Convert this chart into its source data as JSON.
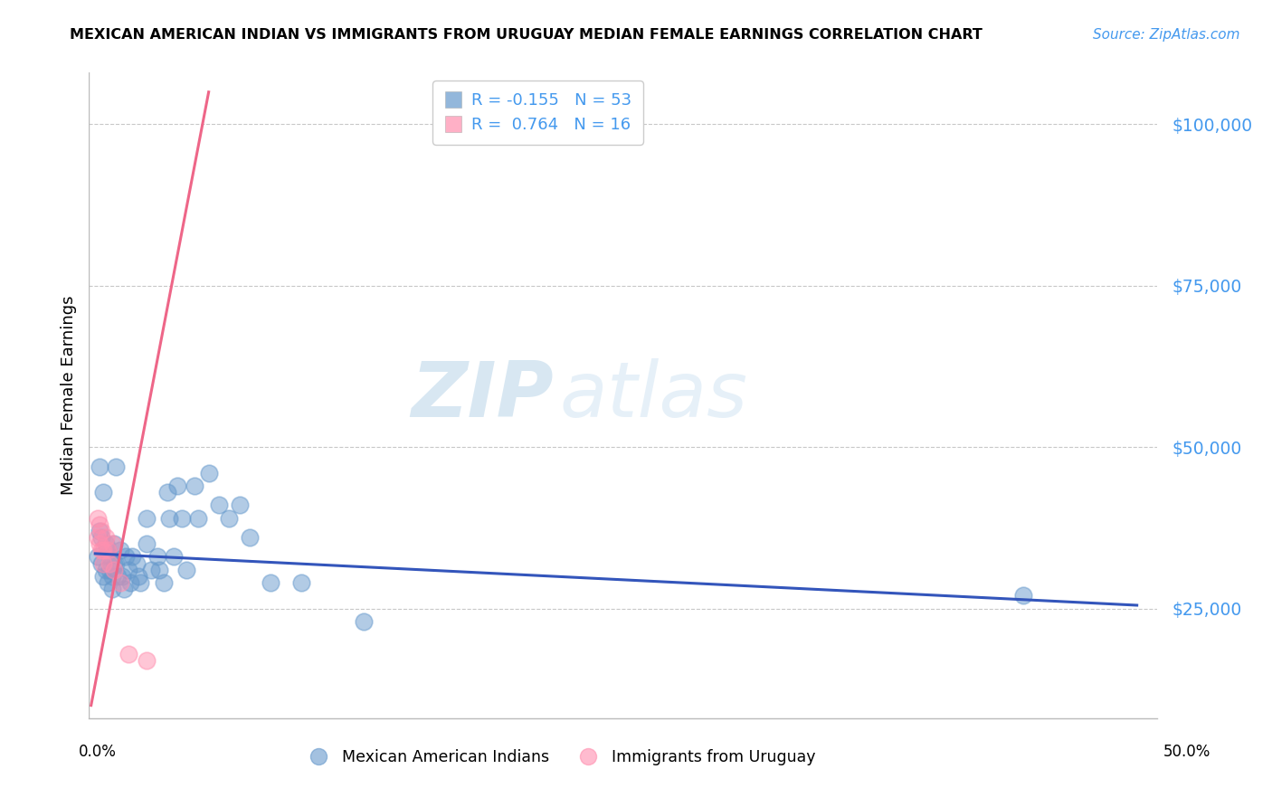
{
  "title": "MEXICAN AMERICAN INDIAN VS IMMIGRANTS FROM URUGUAY MEDIAN FEMALE EARNINGS CORRELATION CHART",
  "source": "Source: ZipAtlas.com",
  "ylabel": "Median Female Earnings",
  "ylim": [
    8000,
    108000
  ],
  "xlim": [
    -0.003,
    0.515
  ],
  "yticks": [
    25000,
    50000,
    75000,
    100000
  ],
  "ytick_labels": [
    "$25,000",
    "$50,000",
    "$75,000",
    "$100,000"
  ],
  "legend1_R": "-0.155",
  "legend1_N": "53",
  "legend2_R": "0.764",
  "legend2_N": "16",
  "legend1_label": "Mexican American Indians",
  "legend2_label": "Immigrants from Uruguay",
  "blue_color": "#6699CC",
  "pink_color": "#FF8FAF",
  "blue_line_color": "#3355BB",
  "pink_line_color": "#EE6688",
  "tick_color": "#4499EE",
  "source_color": "#4499EE",
  "watermark_color": "#C5DFF0",
  "blue_trend_x": [
    0.0,
    0.505
  ],
  "blue_trend_y": [
    33500,
    25500
  ],
  "pink_trend_x": [
    -0.002,
    0.055
  ],
  "pink_trend_y": [
    10000,
    105000
  ],
  "blue_x": [
    0.001,
    0.002,
    0.002,
    0.003,
    0.003,
    0.004,
    0.004,
    0.005,
    0.005,
    0.006,
    0.006,
    0.007,
    0.007,
    0.008,
    0.008,
    0.009,
    0.009,
    0.01,
    0.01,
    0.011,
    0.012,
    0.013,
    0.014,
    0.015,
    0.016,
    0.017,
    0.018,
    0.02,
    0.021,
    0.022,
    0.025,
    0.025,
    0.027,
    0.03,
    0.031,
    0.033,
    0.035,
    0.036,
    0.038,
    0.04,
    0.042,
    0.044,
    0.048,
    0.05,
    0.055,
    0.06,
    0.065,
    0.07,
    0.075,
    0.085,
    0.1,
    0.13,
    0.45
  ],
  "blue_y": [
    33000,
    47000,
    37000,
    36000,
    32000,
    43000,
    30000,
    35000,
    31000,
    34000,
    29000,
    33000,
    31000,
    30000,
    28000,
    35000,
    32000,
    47000,
    32000,
    30000,
    34000,
    30000,
    28000,
    33000,
    31000,
    29000,
    33000,
    32000,
    30000,
    29000,
    39000,
    35000,
    31000,
    33000,
    31000,
    29000,
    43000,
    39000,
    33000,
    44000,
    39000,
    31000,
    44000,
    39000,
    46000,
    41000,
    39000,
    41000,
    36000,
    29000,
    29000,
    23000,
    27000
  ],
  "pink_x": [
    0.001,
    0.001,
    0.002,
    0.002,
    0.003,
    0.003,
    0.004,
    0.004,
    0.005,
    0.006,
    0.007,
    0.008,
    0.009,
    0.012,
    0.016,
    0.025
  ],
  "pink_y": [
    39000,
    36000,
    38000,
    35000,
    37000,
    34000,
    34000,
    32000,
    36000,
    34000,
    32000,
    35000,
    31000,
    29000,
    18000,
    17000
  ]
}
